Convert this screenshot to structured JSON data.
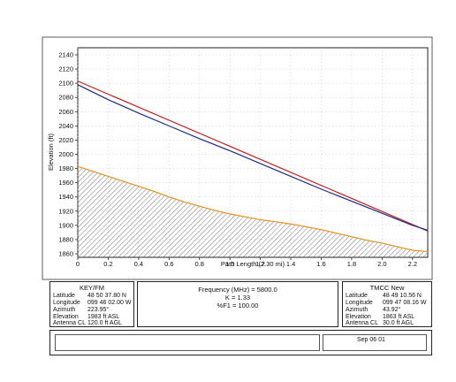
{
  "chart_data": {
    "type": "line",
    "xlabel": "Path Length (2.30 mi)",
    "ylabel": "Elevation (ft)",
    "xlim": [
      0,
      2.3
    ],
    "ylim": [
      1855,
      2150
    ],
    "x_ticks": [
      "0",
      "0.2",
      "0.4",
      "0.6",
      "0.8",
      "1.0",
      "1.2",
      "1.4",
      "1.6",
      "1.8",
      "2.0",
      "2.2"
    ],
    "y_ticks": [
      "1860",
      "1880",
      "1900",
      "1920",
      "1940",
      "1960",
      "1980",
      "2000",
      "2020",
      "2040",
      "2060",
      "2080",
      "2100",
      "2120",
      "2140"
    ],
    "series": [
      {
        "color": "#c81e1e",
        "x": [
          0,
          2.3
        ],
        "y": [
          2103,
          1892
        ]
      },
      {
        "color": "#1c2a8a",
        "x": [
          0,
          0.2,
          0.4,
          0.6,
          0.8,
          1.0,
          1.2,
          1.4,
          1.6,
          1.8,
          2.0,
          2.2,
          2.3
        ],
        "y": [
          2098,
          2077,
          2058,
          2040,
          2022,
          2005,
          1987,
          1969,
          1951,
          1934,
          1917,
          1900,
          1893
        ]
      },
      {
        "color": "#e8901e",
        "x": [
          0,
          0.1,
          0.2,
          0.3,
          0.4,
          0.5,
          0.6,
          0.7,
          0.8,
          0.9,
          1.0,
          1.1,
          1.2,
          1.3,
          1.4,
          1.5,
          1.6,
          1.7,
          1.8,
          1.9,
          2.0,
          2.1,
          2.2,
          2.3
        ],
        "y": [
          1983,
          1976,
          1969,
          1962,
          1955,
          1948,
          1940,
          1933,
          1927,
          1921,
          1916,
          1912,
          1908,
          1905,
          1902,
          1898,
          1894,
          1889,
          1884,
          1879,
          1875,
          1870,
          1865,
          1863
        ]
      }
    ],
    "terrain_fill": "hatched"
  },
  "left_site": {
    "name": "KEY/FM",
    "latitude_label": "Latitude",
    "latitude": "48 50 37.80 N",
    "longitude_label": "Longitude",
    "longitude": "099 46 02.00 W",
    "azimuth_label": "Azimuth",
    "azimuth": "223.95°",
    "elevation_label": "Elevation",
    "elevation": "1983 ft ASL",
    "antenna_label": "Antenna CL",
    "antenna": "120.0 ft AGL"
  },
  "center": {
    "frequency": "Frequency (MHz) = 5800.0",
    "k": "K = 1.33",
    "fresnel": "%F1 = 100.00"
  },
  "right_site": {
    "name": "TMCC New",
    "latitude_label": "Latitude",
    "latitude": "48 49 10.56 N",
    "longitude_label": "Longitude",
    "longitude": "099 47 08.16 W",
    "azimuth_label": "Azimuth",
    "azimuth": "43.92°",
    "elevation_label": "Elevation",
    "elevation": "1863 ft ASL",
    "antenna_label": "Antenna CL",
    "antenna": "30.0 ft AGL"
  },
  "footer": {
    "date": "Sep 06 01"
  }
}
